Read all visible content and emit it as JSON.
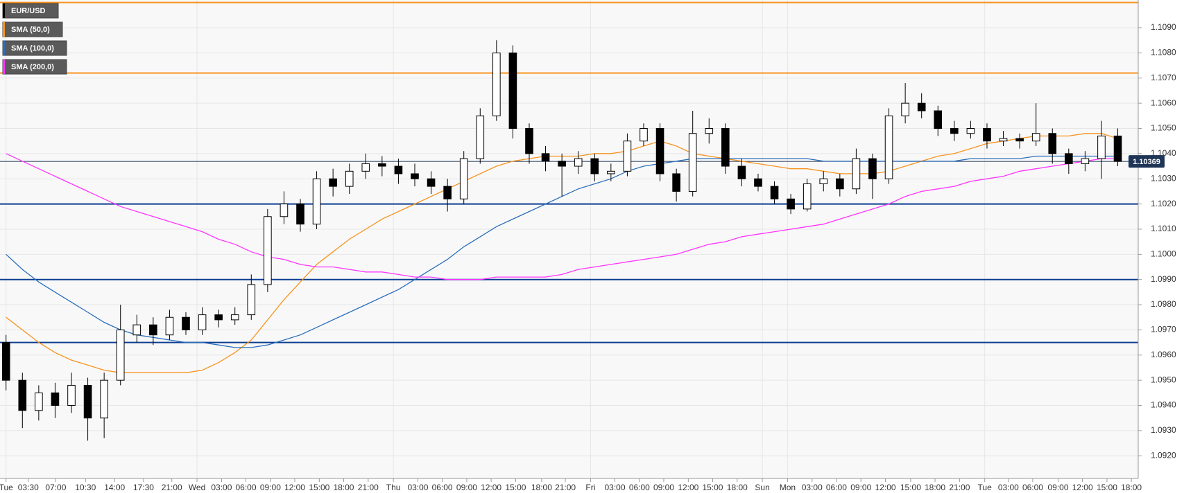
{
  "chart_data": {
    "type": "candlestick",
    "name": "EUR/USD",
    "color_up": "#ffffff",
    "color_down": "#000000",
    "open": [
      1.0965,
      1.095,
      1.0938,
      1.0945,
      1.094,
      1.0948,
      1.0935,
      1.095,
      1.0968,
      1.0972,
      1.0968,
      1.0975,
      1.097,
      1.0976,
      1.0974,
      1.0976,
      1.0988,
      1.1015,
      1.102,
      1.1012,
      1.103,
      1.1027,
      1.1033,
      1.1036,
      1.1035,
      1.1032,
      1.103,
      1.1027,
      1.1022,
      1.1038,
      1.1055,
      1.108,
      1.105,
      1.104,
      1.1037,
      1.1035,
      1.1038,
      1.1032,
      1.1033,
      1.1045,
      1.105,
      1.1032,
      1.1025,
      1.1048,
      1.105,
      1.1035,
      1.103,
      1.1027,
      1.1022,
      1.1018,
      1.1028,
      1.103,
      1.1026,
      1.1038,
      1.103,
      1.1055,
      1.106,
      1.1057,
      1.105,
      1.1048,
      1.105,
      1.1045,
      1.1046,
      1.1045,
      1.1048,
      1.104,
      1.1036,
      1.1038,
      1.1047
    ],
    "high": [
      1.0968,
      1.0953,
      1.0948,
      1.0949,
      1.0953,
      1.0951,
      1.0953,
      1.098,
      1.0976,
      1.0975,
      1.0978,
      1.0977,
      1.0979,
      1.0978,
      1.0979,
      1.0992,
      1.1018,
      1.1025,
      1.1022,
      1.1033,
      1.1034,
      1.1036,
      1.104,
      1.1039,
      1.1038,
      1.1036,
      1.1033,
      1.103,
      1.1041,
      1.1058,
      1.1085,
      1.1083,
      1.1052,
      1.1043,
      1.104,
      1.1041,
      1.104,
      1.1036,
      1.1048,
      1.1052,
      1.1052,
      1.1034,
      1.1057,
      1.1054,
      1.1052,
      1.1038,
      1.1032,
      1.1029,
      1.1024,
      1.103,
      1.1033,
      1.1032,
      1.1042,
      1.104,
      1.1058,
      1.1068,
      1.1064,
      1.1059,
      1.1053,
      1.1053,
      1.1052,
      1.1049,
      1.1048,
      1.106,
      1.105,
      1.1042,
      1.1041,
      1.1053,
      1.105
    ],
    "low": [
      1.0946,
      1.0931,
      1.0934,
      1.0935,
      1.0937,
      1.0926,
      1.0927,
      1.0948,
      1.0965,
      1.0964,
      1.0966,
      1.0968,
      1.0968,
      1.0971,
      1.0972,
      1.0974,
      1.0985,
      1.1012,
      1.1009,
      1.101,
      1.1023,
      1.1024,
      1.103,
      1.1031,
      1.1028,
      1.1027,
      1.1024,
      1.1017,
      1.102,
      1.1036,
      1.1053,
      1.1046,
      1.1036,
      1.1033,
      1.1023,
      1.1032,
      1.1029,
      1.1029,
      1.1031,
      1.1043,
      1.1029,
      1.1021,
      1.1023,
      1.1044,
      1.1032,
      1.1027,
      1.1025,
      1.102,
      1.1016,
      1.1017,
      1.1025,
      1.1023,
      1.1024,
      1.1022,
      1.1028,
      1.1052,
      1.1054,
      1.1047,
      1.1045,
      1.1046,
      1.1042,
      1.1043,
      1.1042,
      1.1043,
      1.1036,
      1.1032,
      1.1033,
      1.103,
      1.1035
    ],
    "close": [
      1.095,
      1.0938,
      1.0945,
      1.094,
      1.0948,
      1.0935,
      1.095,
      1.097,
      1.0972,
      1.0968,
      1.0975,
      1.097,
      1.0976,
      1.0974,
      1.0976,
      1.0988,
      1.1015,
      1.102,
      1.1012,
      1.103,
      1.1027,
      1.1033,
      1.1036,
      1.1035,
      1.1032,
      1.103,
      1.1027,
      1.1022,
      1.1038,
      1.1055,
      1.108,
      1.105,
      1.104,
      1.1037,
      1.1035,
      1.1038,
      1.1032,
      1.1033,
      1.1045,
      1.105,
      1.1032,
      1.1025,
      1.1048,
      1.105,
      1.1035,
      1.103,
      1.1027,
      1.1022,
      1.1018,
      1.1028,
      1.103,
      1.1026,
      1.1038,
      1.103,
      1.1055,
      1.106,
      1.1057,
      1.105,
      1.1048,
      1.105,
      1.1045,
      1.1046,
      1.1045,
      1.1048,
      1.104,
      1.1036,
      1.1038,
      1.1047,
      1.10369
    ],
    "series": [
      {
        "name": "SMA (50,0)",
        "color": "#f7931e",
        "values": [
          1.0975,
          1.097,
          1.0965,
          1.0961,
          1.0958,
          1.0956,
          1.0954,
          1.0953,
          1.0953,
          1.0953,
          1.0953,
          1.0953,
          1.0954,
          1.0957,
          1.0961,
          1.0966,
          1.0974,
          1.0982,
          1.0989,
          1.0996,
          1.1001,
          1.1006,
          1.101,
          1.1014,
          1.1017,
          1.102,
          1.1023,
          1.1026,
          1.1029,
          1.1032,
          1.1035,
          1.1037,
          1.1038,
          1.1039,
          1.1039,
          1.1039,
          1.104,
          1.104,
          1.1041,
          1.1043,
          1.1045,
          1.1043,
          1.104,
          1.1039,
          1.1038,
          1.1037,
          1.1036,
          1.1035,
          1.1034,
          1.1034,
          1.1033,
          1.1032,
          1.1032,
          1.1032,
          1.1033,
          1.1035,
          1.1037,
          1.1039,
          1.104,
          1.1042,
          1.1044,
          1.1045,
          1.1046,
          1.1047,
          1.1047,
          1.1047,
          1.1048,
          1.1048,
          1.1046
        ]
      },
      {
        "name": "SMA (100,0)",
        "color": "#2a6ebb",
        "values": [
          1.1,
          1.0994,
          1.0989,
          1.0985,
          1.0981,
          1.0977,
          1.0973,
          1.097,
          1.0968,
          1.0967,
          1.0966,
          1.0965,
          1.0965,
          1.0964,
          1.0963,
          1.0963,
          1.0964,
          1.0966,
          1.0968,
          1.0971,
          1.0974,
          1.0977,
          1.098,
          1.0983,
          1.0986,
          1.099,
          1.0994,
          1.0998,
          1.1003,
          1.1007,
          1.1011,
          1.1014,
          1.1017,
          1.102,
          1.1023,
          1.1026,
          1.1028,
          1.103,
          1.1033,
          1.1035,
          1.1036,
          1.1037,
          1.1038,
          1.1038,
          1.1038,
          1.1038,
          1.1038,
          1.1038,
          1.1038,
          1.1038,
          1.1037,
          1.1037,
          1.1037,
          1.1037,
          1.1037,
          1.1037,
          1.1037,
          1.1037,
          1.1037,
          1.1038,
          1.1038,
          1.1038,
          1.1038,
          1.1039,
          1.1039,
          1.1039,
          1.1039,
          1.1039,
          1.1039
        ]
      },
      {
        "name": "SMA (200,0)",
        "color": "#ff33ff",
        "values": [
          1.104,
          1.1037,
          1.1034,
          1.1031,
          1.1028,
          1.1025,
          1.1022,
          1.1019,
          1.1017,
          1.1015,
          1.1013,
          1.1011,
          1.1009,
          1.1006,
          1.1004,
          1.1001,
          1.0999,
          1.0998,
          1.0996,
          1.0995,
          1.0995,
          1.0994,
          1.0993,
          1.0993,
          1.0992,
          1.0991,
          1.0991,
          1.099,
          1.099,
          1.099,
          1.0991,
          1.0991,
          1.0991,
          1.0991,
          1.0992,
          1.0994,
          1.0995,
          1.0996,
          1.0997,
          1.0998,
          1.0999,
          1.1,
          1.1002,
          1.1004,
          1.1005,
          1.1007,
          1.1008,
          1.1009,
          1.101,
          1.1011,
          1.1012,
          1.1014,
          1.1016,
          1.1018,
          1.102,
          1.1023,
          1.1025,
          1.1026,
          1.1027,
          1.1029,
          1.103,
          1.1031,
          1.1033,
          1.1034,
          1.1035,
          1.1036,
          1.1037,
          1.1038,
          1.1038
        ]
      }
    ],
    "levels": [
      {
        "value": 1.11,
        "color": "#f7931e"
      },
      {
        "value": 1.1072,
        "color": "#f7931e"
      },
      {
        "value": 1.102,
        "color": "#0b3d91"
      },
      {
        "value": 1.099,
        "color": "#0b3d91"
      },
      {
        "value": 1.0965,
        "color": "#0b3d91"
      }
    ],
    "last_price": 1.10369,
    "xlim": [
      -0.37,
      69.25
    ],
    "ylim": [
      1.0911,
      1.1101
    ],
    "grid": true,
    "yticks": [
      {
        "value": 1.092,
        "label": "1.0920"
      },
      {
        "value": 1.093,
        "label": "1.0930"
      },
      {
        "value": 1.094,
        "label": "1.0940"
      },
      {
        "value": 1.095,
        "label": "1.0950"
      },
      {
        "value": 1.096,
        "label": "1.0960"
      },
      {
        "value": 1.097,
        "label": "1.0970"
      },
      {
        "value": 1.098,
        "label": "1.0980"
      },
      {
        "value": 1.099,
        "label": "1.0990"
      },
      {
        "value": 1.1,
        "label": "1.1000"
      },
      {
        "value": 1.101,
        "label": "1.1010"
      },
      {
        "value": 1.102,
        "label": "1.1020"
      },
      {
        "value": 1.103,
        "label": "1.1030"
      },
      {
        "value": 1.104,
        "label": "1.1040"
      },
      {
        "value": 1.105,
        "label": "1.1050"
      },
      {
        "value": 1.106,
        "label": "1.1060"
      },
      {
        "value": 1.107,
        "label": "1.1070"
      },
      {
        "value": 1.108,
        "label": "1.1080"
      },
      {
        "value": 1.109,
        "label": "1.1090"
      }
    ],
    "xticks": [
      {
        "value": 0,
        "label": "Tue"
      },
      {
        "value": 1.36,
        "label": "03:30"
      },
      {
        "value": 3.04,
        "label": "07:00"
      },
      {
        "value": 4.86,
        "label": "10:30"
      },
      {
        "value": 6.64,
        "label": "14:00"
      },
      {
        "value": 8.41,
        "label": "17:30"
      },
      {
        "value": 10.14,
        "label": "21:00"
      },
      {
        "value": 11.68,
        "label": "Wed"
      },
      {
        "value": 13.18,
        "label": "03:00"
      },
      {
        "value": 14.67,
        "label": "06:00"
      },
      {
        "value": 16.17,
        "label": "09:00"
      },
      {
        "value": 17.66,
        "label": "12:00"
      },
      {
        "value": 19.16,
        "label": "15:00"
      },
      {
        "value": 20.65,
        "label": "18:00"
      },
      {
        "value": 22.15,
        "label": "21:00"
      },
      {
        "value": 23.69,
        "label": "Thu"
      },
      {
        "value": 25.19,
        "label": "03:00"
      },
      {
        "value": 26.68,
        "label": "06:00"
      },
      {
        "value": 28.18,
        "label": "09:00"
      },
      {
        "value": 29.67,
        "label": "12:00"
      },
      {
        "value": 31.17,
        "label": "15:00"
      },
      {
        "value": 32.76,
        "label": "18:00"
      },
      {
        "value": 34.21,
        "label": "21:00"
      },
      {
        "value": 35.75,
        "label": "Fri"
      },
      {
        "value": 37.24,
        "label": "03:00"
      },
      {
        "value": 38.74,
        "label": "06:00"
      },
      {
        "value": 40.23,
        "label": "09:00"
      },
      {
        "value": 41.73,
        "label": "12:00"
      },
      {
        "value": 43.22,
        "label": "15:00"
      },
      {
        "value": 44.72,
        "label": "18:00"
      },
      {
        "value": 46.26,
        "label": "Sun"
      },
      {
        "value": 47.8,
        "label": "Mon"
      },
      {
        "value": 49.3,
        "label": "03:00"
      },
      {
        "value": 50.79,
        "label": "06:00"
      },
      {
        "value": 52.29,
        "label": "09:00"
      },
      {
        "value": 53.79,
        "label": "12:00"
      },
      {
        "value": 55.33,
        "label": "15:00"
      },
      {
        "value": 56.82,
        "label": "18:00"
      },
      {
        "value": 58.32,
        "label": "21:00"
      },
      {
        "value": 59.86,
        "label": "Tue"
      },
      {
        "value": 61.31,
        "label": "03:00"
      },
      {
        "value": 62.8,
        "label": "06:00"
      },
      {
        "value": 64.35,
        "label": "09:00"
      },
      {
        "value": 65.84,
        "label": "12:00"
      },
      {
        "value": 67.34,
        "label": "15:00"
      },
      {
        "value": 68.83,
        "label": "18:00"
      }
    ]
  }
}
